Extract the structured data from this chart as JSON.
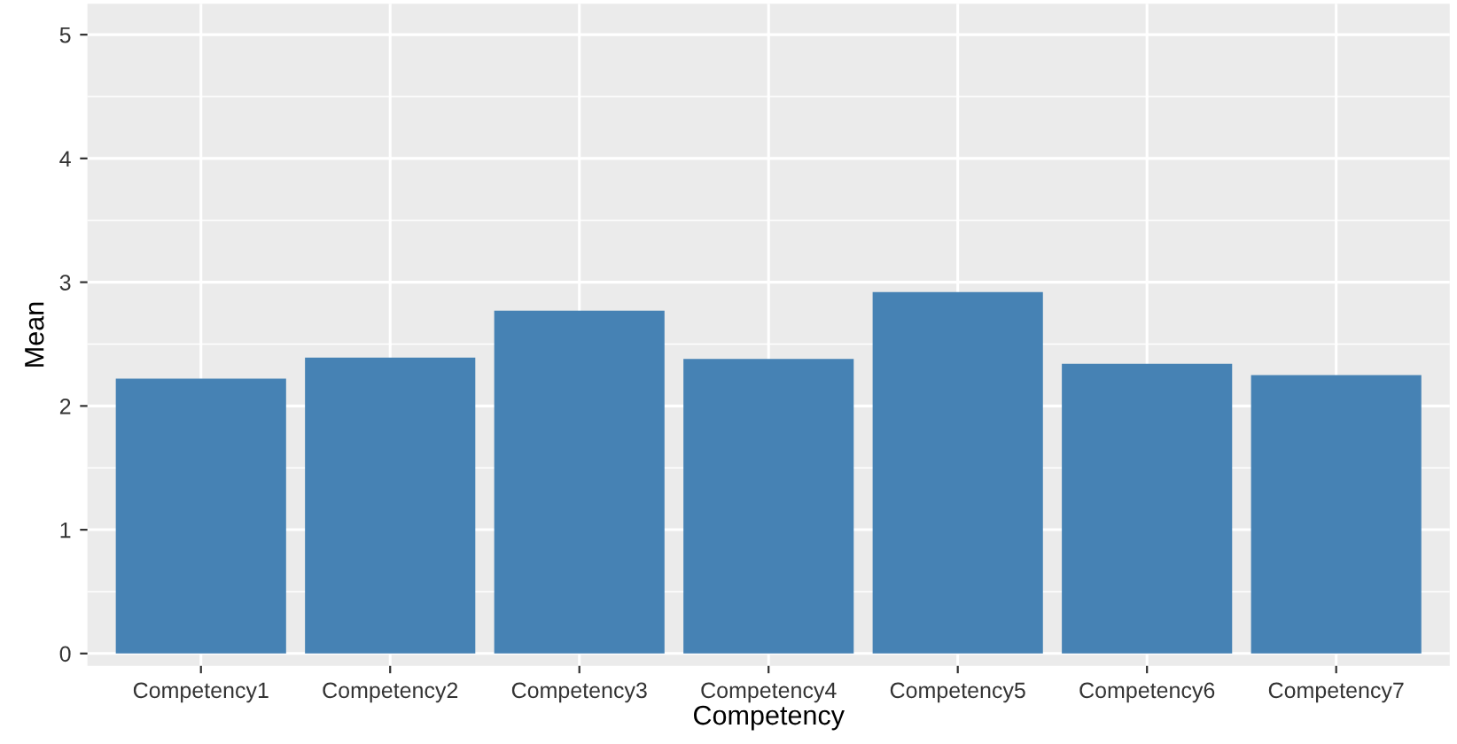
{
  "chart_data": {
    "type": "bar",
    "xlabel": "Competency",
    "ylabel": "Mean",
    "categories": [
      "Competency1",
      "Competency2",
      "Competency3",
      "Competency4",
      "Competency5",
      "Competency6",
      "Competency7"
    ],
    "values": [
      2.22,
      2.39,
      2.77,
      2.38,
      2.92,
      2.34,
      2.25
    ],
    "color": "#4682b4",
    "ylim": [
      -0.1,
      5.25
    ],
    "yticks": [
      0,
      1,
      2,
      3,
      4,
      5
    ],
    "grid": true
  }
}
